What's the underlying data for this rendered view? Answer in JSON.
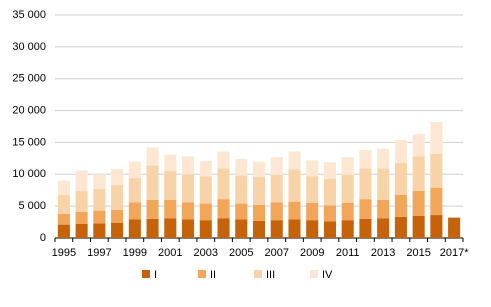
{
  "chart_data": {
    "type": "stacked-bar",
    "categories": [
      "1995",
      null,
      "1997",
      null,
      "1999",
      null,
      "2001",
      null,
      "2003",
      null,
      "2005",
      null,
      "2007",
      null,
      "2009",
      null,
      "2011",
      null,
      "2013",
      null,
      "2015",
      null,
      "2017*"
    ],
    "series": [
      {
        "name": "I",
        "color": "#c5620a",
        "values": [
          2100,
          2200,
          2300,
          2400,
          2900,
          3000,
          3100,
          2900,
          2800,
          3100,
          2900,
          2700,
          2800,
          2900,
          2800,
          2600,
          2800,
          3000,
          3100,
          3300,
          3500,
          3600,
          3200
        ]
      },
      {
        "name": "II",
        "color": "#f2a65a",
        "values": [
          1700,
          1900,
          2000,
          2000,
          2700,
          3000,
          2900,
          2700,
          2600,
          3000,
          2500,
          2500,
          2800,
          2800,
          2700,
          2500,
          2700,
          3100,
          2900,
          3500,
          3900,
          4300,
          null
        ]
      },
      {
        "name": "III",
        "color": "#f9d3a8",
        "values": [
          3000,
          3300,
          3400,
          3900,
          3800,
          5400,
          4500,
          4400,
          4300,
          4800,
          4400,
          4400,
          4300,
          5100,
          4200,
          4200,
          4400,
          4800,
          4900,
          5000,
          5400,
          5300,
          null
        ]
      },
      {
        "name": "IV",
        "color": "#fde7d2",
        "values": [
          2200,
          3200,
          2300,
          2500,
          2600,
          2800,
          2600,
          2800,
          2400,
          2700,
          2600,
          2400,
          2800,
          2800,
          2500,
          2600,
          2800,
          2900,
          3100,
          3600,
          3500,
          5000,
          null
        ]
      }
    ],
    "ylim": [
      0,
      35000
    ],
    "yticks": [
      0,
      {
        "value": 5000,
        "label": "5 000"
      },
      {
        "value": 10000,
        "label": "10 000"
      },
      {
        "value": 15000,
        "label": "15 000"
      },
      {
        "value": 20000,
        "label": "20 000"
      },
      {
        "value": 25000,
        "label": "25 000"
      },
      {
        "value": 30000,
        "label": "30 000"
      },
      {
        "value": 35000,
        "label": "35 000"
      }
    ],
    "grid": true,
    "legend": "bottom"
  }
}
